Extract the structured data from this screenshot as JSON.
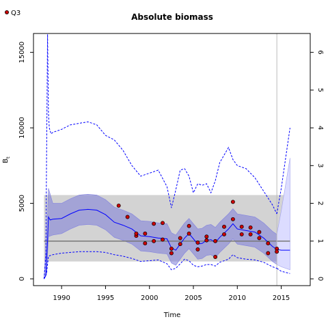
{
  "chart_data": {
    "type": "line",
    "title": "Absolute biomass",
    "xlabel": "Time",
    "ylabel": "B",
    "ylabel_subscript": "t",
    "xlim": [
      1986.8,
      2018.3
    ],
    "ylim": [
      -450,
      16250
    ],
    "right_ylim": [
      -0.18,
      6.5
    ],
    "x_ticks": [
      1990,
      1995,
      2000,
      2005,
      2010,
      2015
    ],
    "y_ticks": [
      0,
      5000,
      10000,
      15000
    ],
    "right_ticks": [
      0,
      1,
      2,
      3,
      4,
      5,
      6
    ],
    "legend": {
      "label": "Q3",
      "position": "top-left",
      "color": "#ff0000"
    },
    "reference_band": {
      "x": [
        1988,
        2016
      ],
      "y": [
        1150,
        5550
      ],
      "color": "#d3d3d3"
    },
    "reference_line": {
      "value": 2500,
      "color": "#777777"
    },
    "vertical_line": {
      "x": 2014.5,
      "color": "#bbbbbb"
    },
    "series": [
      {
        "name": "",
        "style": "solid",
        "color": "#0000ff",
        "x": [
          1988,
          1988.2,
          1988.4,
          1988.5,
          1988.7,
          1989,
          1990,
          1991,
          1992,
          1993,
          1994,
          1995,
          1996,
          1997,
          1998,
          1999,
          2000,
          2001,
          2002,
          2002.5,
          2003,
          2003.5,
          2004,
          2004.5,
          2005,
          2005.5,
          2006,
          2006.5,
          2007,
          2007.5,
          2008,
          2009,
          2009.5,
          2010,
          2011,
          2012,
          2013,
          2014,
          2014.5
        ],
        "y": [
          0,
          200,
          2500,
          4100,
          3900,
          3950,
          4000,
          4300,
          4550,
          4600,
          4550,
          4250,
          3750,
          3550,
          3300,
          2850,
          2800,
          2700,
          2650,
          2050,
          1900,
          2300,
          2700,
          3000,
          2650,
          2300,
          2350,
          2550,
          2600,
          2400,
          2750,
          3300,
          3650,
          3300,
          3200,
          3100,
          2700,
          2150,
          1950
        ]
      },
      {
        "name": "",
        "style": "dashed",
        "color": "#0000ff",
        "x": [
          1988,
          1988.2,
          1988.4,
          1988.5,
          1988.6,
          1988.8,
          1989,
          1990,
          1991,
          1992,
          1993,
          1994,
          1995,
          1996,
          1997,
          1998,
          1999,
          2000,
          2001,
          2002,
          2002.5,
          2003,
          2003.5,
          2004,
          2004.5,
          2005,
          2005.5,
          2006,
          2006.5,
          2007,
          2007.5,
          2008,
          2009,
          2009.5,
          2010,
          2011,
          2012,
          2013,
          2014,
          2014.5
        ],
        "y": [
          0,
          1500,
          16200,
          11000,
          10000,
          9600,
          9700,
          9900,
          10200,
          10300,
          10400,
          10200,
          9500,
          9200,
          8500,
          7500,
          6800,
          7000,
          7200,
          6100,
          4700,
          5900,
          7200,
          7300,
          6800,
          5700,
          6300,
          6200,
          6300,
          5700,
          6500,
          7700,
          8700,
          7900,
          7500,
          7300,
          6700,
          5800,
          4900,
          4300
        ]
      },
      {
        "name": "",
        "style": "dashed",
        "color": "#0000ff",
        "x": [
          1988,
          1988.3,
          1988.5,
          1989,
          1990,
          1991,
          1992,
          1993,
          1994,
          1995,
          1996,
          1997,
          1998,
          1999,
          2000,
          2001,
          2002,
          2002.5,
          2003,
          2003.5,
          2004,
          2004.5,
          2005,
          2005.5,
          2006,
          2006.5,
          2007,
          2007.5,
          2008,
          2009,
          2009.5,
          2010,
          2011,
          2012,
          2013,
          2014,
          2014.5
        ],
        "y": [
          0,
          400,
          1500,
          1600,
          1700,
          1750,
          1800,
          1800,
          1800,
          1750,
          1600,
          1500,
          1350,
          1150,
          1200,
          1250,
          1000,
          600,
          700,
          1000,
          1300,
          1200,
          900,
          800,
          850,
          950,
          950,
          850,
          1100,
          1300,
          1600,
          1400,
          1300,
          1250,
          1100,
          800,
          700
        ]
      },
      {
        "name": "",
        "style": "solid",
        "color": "#0000ff",
        "x": [
          2014.5,
          2015,
          2016
        ],
        "y": [
          1950,
          1900,
          1900
        ]
      },
      {
        "name": "",
        "style": "dashed",
        "color": "#0000ff",
        "x": [
          2014.5,
          2015,
          2016
        ],
        "y": [
          4300,
          6000,
          10000
        ]
      },
      {
        "name": "",
        "style": "dashed",
        "color": "#0000ff",
        "x": [
          2014.5,
          2015,
          2016
        ],
        "y": [
          700,
          500,
          350
        ]
      }
    ],
    "ci_band": {
      "color": "#7b7bd8",
      "x": [
        1988,
        1988.3,
        1988.5,
        1989,
        1990,
        1991,
        1992,
        1993,
        1994,
        1995,
        1996,
        1997,
        1998,
        1999,
        2000,
        2001,
        2002,
        2002.5,
        2003,
        2003.5,
        2004,
        2004.5,
        2005,
        2005.5,
        2006,
        2006.5,
        2007,
        2007.5,
        2008,
        2009,
        2009.5,
        2010,
        2011,
        2012,
        2013,
        2014,
        2014.5
      ],
      "upper": [
        0,
        3000,
        6000,
        5000,
        5000,
        5300,
        5550,
        5600,
        5550,
        5250,
        4750,
        4550,
        4300,
        3850,
        3800,
        3700,
        3650,
        3050,
        2900,
        3300,
        3700,
        4000,
        3650,
        3300,
        3350,
        3550,
        3600,
        3400,
        3750,
        4300,
        4650,
        4300,
        4200,
        4100,
        3700,
        3150,
        2950
      ],
      "lower": [
        0,
        300,
        2800,
        2900,
        3000,
        3300,
        3550,
        3600,
        3550,
        3250,
        2750,
        2550,
        2300,
        1850,
        1800,
        1700,
        1650,
        1050,
        900,
        1300,
        1700,
        2000,
        1650,
        1300,
        1350,
        1550,
        1600,
        1400,
        1750,
        2300,
        2650,
        2300,
        2200,
        2100,
        1700,
        1150,
        950
      ]
    },
    "forecast_band": {
      "color": "#dcdcff",
      "x": [
        2014.5,
        2015,
        2016
      ],
      "upper": [
        2950,
        4500,
        8000
      ],
      "lower": [
        950,
        800,
        600
      ]
    },
    "observations": {
      "name": "Q3",
      "color": "#cc0000",
      "points": [
        {
          "x": 1996.5,
          "y": 4850
        },
        {
          "x": 1997.5,
          "y": 4100
        },
        {
          "x": 1998.5,
          "y": 2850
        },
        {
          "x": 1998.5,
          "y": 3000
        },
        {
          "x": 1999.5,
          "y": 2350
        },
        {
          "x": 1999.5,
          "y": 3000
        },
        {
          "x": 2000.5,
          "y": 3650
        },
        {
          "x": 2000.5,
          "y": 2500
        },
        {
          "x": 2001.5,
          "y": 3700
        },
        {
          "x": 2001.5,
          "y": 2600
        },
        {
          "x": 2002.5,
          "y": 1700
        },
        {
          "x": 2002.5,
          "y": 2000
        },
        {
          "x": 2003.5,
          "y": 2300
        },
        {
          "x": 2003.5,
          "y": 2700
        },
        {
          "x": 2004.5,
          "y": 3500
        },
        {
          "x": 2004.5,
          "y": 3000
        },
        {
          "x": 2005.5,
          "y": 2400
        },
        {
          "x": 2005.5,
          "y": 1950
        },
        {
          "x": 2006.5,
          "y": 2800
        },
        {
          "x": 2006.5,
          "y": 2550
        },
        {
          "x": 2007.5,
          "y": 1450
        },
        {
          "x": 2007.5,
          "y": 2500
        },
        {
          "x": 2008.5,
          "y": 3450
        },
        {
          "x": 2008.5,
          "y": 2950
        },
        {
          "x": 2009.5,
          "y": 5100
        },
        {
          "x": 2009.5,
          "y": 3950
        },
        {
          "x": 2010.5,
          "y": 3450
        },
        {
          "x": 2010.5,
          "y": 2950
        },
        {
          "x": 2011.5,
          "y": 3400
        },
        {
          "x": 2011.5,
          "y": 2950
        },
        {
          "x": 2012.5,
          "y": 3100
        },
        {
          "x": 2012.5,
          "y": 2700
        },
        {
          "x": 2013.5,
          "y": 2350
        },
        {
          "x": 2013.5,
          "y": 1700
        },
        {
          "x": 2014.5,
          "y": 2000
        },
        {
          "x": 2014.5,
          "y": 1800
        }
      ]
    }
  }
}
